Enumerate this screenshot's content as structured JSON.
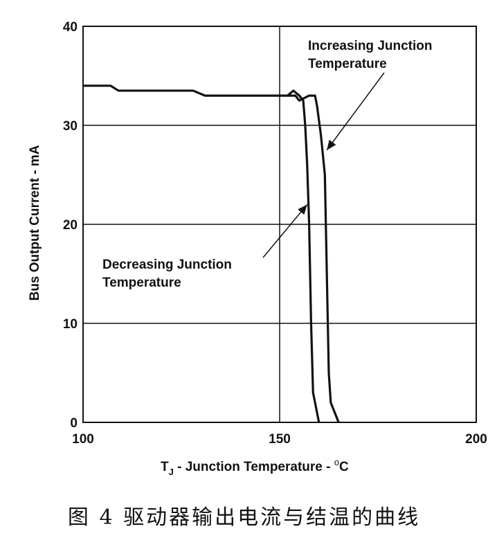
{
  "chart_data": {
    "type": "line",
    "title": "",
    "xlabel": "T_J - Junction Temperature - °C",
    "xlabel_main": "T",
    "xlabel_sub": "J",
    "xlabel_rest": " - Junction Temperature - ",
    "xlabel_deg": "o",
    "xlabel_unit": "C",
    "ylabel": "Bus Output Current - mA",
    "xlim": [
      100,
      200
    ],
    "ylim": [
      0,
      40
    ],
    "xticks": [
      100,
      150,
      200
    ],
    "yticks": [
      0,
      10,
      20,
      30,
      40
    ],
    "grid": true,
    "series": [
      {
        "name": "Decreasing Junction Temperature",
        "points": [
          [
            100,
            34
          ],
          [
            107,
            34
          ],
          [
            109,
            33.5
          ],
          [
            128,
            33.5
          ],
          [
            131,
            33
          ],
          [
            152,
            33
          ],
          [
            153.5,
            33.5
          ],
          [
            155,
            33
          ],
          [
            156,
            32.5
          ],
          [
            156.5,
            30
          ],
          [
            157,
            26
          ],
          [
            157.5,
            20
          ],
          [
            158,
            10
          ],
          [
            158.5,
            3
          ],
          [
            160,
            0
          ]
        ]
      },
      {
        "name": "Increasing Junction Temperature",
        "points": [
          [
            152,
            33
          ],
          [
            154,
            33
          ],
          [
            155,
            32.5
          ],
          [
            157.5,
            33
          ],
          [
            159,
            33
          ],
          [
            159.5,
            32
          ],
          [
            160.5,
            29
          ],
          [
            161.5,
            25
          ],
          [
            162,
            15
          ],
          [
            162.5,
            5
          ],
          [
            163,
            2
          ],
          [
            165,
            0
          ]
        ]
      }
    ],
    "annotations": [
      {
        "line1": "Increasing Junction",
        "line2": "Temperature",
        "arrow_to": [
          162,
          27.5
        ]
      },
      {
        "line1": "Decreasing Junction",
        "line2": "Temperature",
        "arrow_to": [
          157,
          22
        ]
      }
    ]
  },
  "caption": "图 4  驱动器输出电流与结温的曲线"
}
